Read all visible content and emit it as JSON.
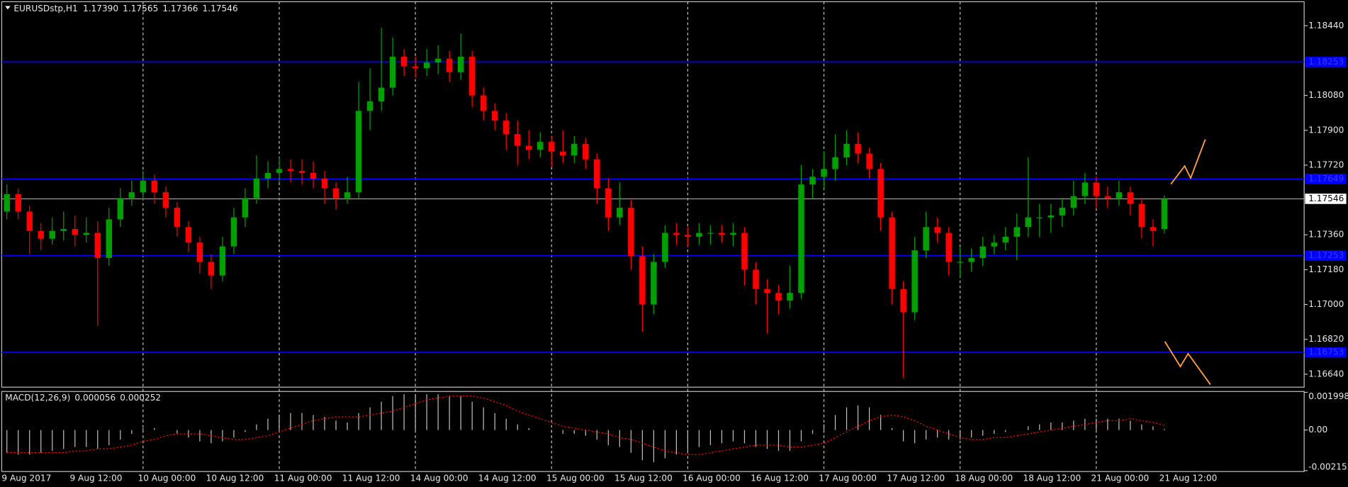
{
  "chart_data": [
    {
      "type": "candlestick",
      "title": "EURUSDstp,H1",
      "info_labels": [
        "1.17390",
        "1.17565",
        "1.17366",
        "1.17546"
      ],
      "categories": [
        "9 Aug 2017",
        null,
        null,
        null,
        null,
        null,
        "9 Aug 12:00",
        null,
        null,
        null,
        null,
        null,
        "10 Aug 00:00",
        null,
        null,
        null,
        null,
        null,
        "10 Aug 12:00",
        null,
        null,
        null,
        null,
        null,
        "11 Aug 00:00",
        null,
        null,
        null,
        null,
        null,
        "11 Aug 12:00",
        null,
        null,
        null,
        null,
        null,
        "14 Aug 00:00",
        null,
        null,
        null,
        null,
        null,
        "14 Aug 12:00",
        null,
        null,
        null,
        null,
        null,
        "15 Aug 00:00",
        null,
        null,
        null,
        null,
        null,
        "15 Aug 12:00",
        null,
        null,
        null,
        null,
        null,
        "16 Aug 00:00",
        null,
        null,
        null,
        null,
        null,
        "16 Aug 12:00",
        null,
        null,
        null,
        null,
        null,
        "17 Aug 00:00",
        null,
        null,
        null,
        null,
        null,
        "17 Aug 12:00",
        null,
        null,
        null,
        null,
        null,
        "18 Aug 00:00",
        null,
        null,
        null,
        null,
        null,
        "18 Aug 12:00",
        null,
        null,
        null,
        null,
        null,
        "21 Aug 00:00",
        null,
        null,
        null,
        null,
        null,
        "21 Aug 12:00"
      ],
      "ohlc": [
        [
          1.1748,
          1.1762,
          1.1744,
          1.1757
        ],
        [
          1.1757,
          1.176,
          1.1744,
          1.1748
        ],
        [
          1.1748,
          1.1751,
          1.1726,
          1.1738
        ],
        [
          1.1738,
          1.1742,
          1.1728,
          1.1734
        ],
        [
          1.1734,
          1.1745,
          1.1731,
          1.1738
        ],
        [
          1.1738,
          1.1748,
          1.1733,
          1.1739
        ],
        [
          1.1739,
          1.1746,
          1.173,
          1.1736
        ],
        [
          1.1736,
          1.1745,
          1.1732,
          1.1737
        ],
        [
          1.1737,
          1.1743,
          1.1689,
          1.1724
        ],
        [
          1.1724,
          1.175,
          1.172,
          1.1744
        ],
        [
          1.1744,
          1.176,
          1.174,
          1.1755
        ],
        [
          1.1755,
          1.1764,
          1.1751,
          1.1758
        ],
        [
          1.1758,
          1.1769,
          1.1754,
          1.1764
        ],
        [
          1.1764,
          1.1767,
          1.1752,
          1.1758
        ],
        [
          1.1758,
          1.1761,
          1.1745,
          1.175
        ],
        [
          1.175,
          1.1753,
          1.1735,
          1.174
        ],
        [
          1.174,
          1.1743,
          1.1727,
          1.1732
        ],
        [
          1.1732,
          1.1735,
          1.1716,
          1.1722
        ],
        [
          1.1722,
          1.1726,
          1.1708,
          1.1715
        ],
        [
          1.1715,
          1.1735,
          1.1712,
          1.173
        ],
        [
          1.173,
          1.175,
          1.1726,
          1.1745
        ],
        [
          1.1745,
          1.176,
          1.174,
          1.1755
        ],
        [
          1.1755,
          1.1777,
          1.1752,
          1.1765
        ],
        [
          1.1765,
          1.1774,
          1.176,
          1.1768
        ],
        [
          1.1768,
          1.1776,
          1.1763,
          1.177
        ],
        [
          1.177,
          1.1775,
          1.1763,
          1.1769
        ],
        [
          1.1769,
          1.1775,
          1.1762,
          1.1768
        ],
        [
          1.1768,
          1.1774,
          1.176,
          1.1765
        ],
        [
          1.1765,
          1.1769,
          1.1752,
          1.176
        ],
        [
          1.176,
          1.1763,
          1.1749,
          1.1755
        ],
        [
          1.1755,
          1.1766,
          1.1752,
          1.1758
        ],
        [
          1.1758,
          1.1815,
          1.1755,
          1.18
        ],
        [
          1.18,
          1.1822,
          1.179,
          1.1805
        ],
        [
          1.1805,
          1.1843,
          1.18,
          1.1812
        ],
        [
          1.1812,
          1.1838,
          1.1808,
          1.1828
        ],
        [
          1.1828,
          1.1832,
          1.1818,
          1.1823
        ],
        [
          1.1823,
          1.1828,
          1.1817,
          1.1822
        ],
        [
          1.1822,
          1.1832,
          1.1818,
          1.1825
        ],
        [
          1.1825,
          1.1834,
          1.1819,
          1.1827
        ],
        [
          1.1827,
          1.1831,
          1.1815,
          1.182
        ],
        [
          1.182,
          1.184,
          1.1816,
          1.1828
        ],
        [
          1.1828,
          1.1831,
          1.1802,
          1.1808
        ],
        [
          1.1808,
          1.1812,
          1.1795,
          1.18
        ],
        [
          1.18,
          1.1804,
          1.179,
          1.1795
        ],
        [
          1.1795,
          1.1799,
          1.178,
          1.1788
        ],
        [
          1.1788,
          1.1795,
          1.1772,
          1.1782
        ],
        [
          1.1782,
          1.179,
          1.1775,
          1.178
        ],
        [
          1.178,
          1.1789,
          1.1776,
          1.1784
        ],
        [
          1.1784,
          1.1787,
          1.1771,
          1.1779
        ],
        [
          1.1779,
          1.179,
          1.1773,
          1.1777
        ],
        [
          1.1777,
          1.1787,
          1.1773,
          1.1783
        ],
        [
          1.1783,
          1.1786,
          1.177,
          1.1775
        ],
        [
          1.1775,
          1.1778,
          1.1752,
          1.176
        ],
        [
          1.176,
          1.1765,
          1.1738,
          1.1745
        ],
        [
          1.1745,
          1.1763,
          1.1741,
          1.175
        ],
        [
          1.175,
          1.1754,
          1.1718,
          1.1725
        ],
        [
          1.1725,
          1.173,
          1.1686,
          1.17
        ],
        [
          1.17,
          1.1726,
          1.1695,
          1.1722
        ],
        [
          1.1722,
          1.1741,
          1.1719,
          1.1737
        ],
        [
          1.1737,
          1.1742,
          1.1731,
          1.1736
        ],
        [
          1.1736,
          1.174,
          1.173,
          1.1735
        ],
        [
          1.1735,
          1.1742,
          1.1731,
          1.1737
        ],
        [
          1.1737,
          1.1741,
          1.1731,
          1.1737
        ],
        [
          1.1737,
          1.1741,
          1.1732,
          1.1736
        ],
        [
          1.1736,
          1.1742,
          1.173,
          1.1737
        ],
        [
          1.1737,
          1.174,
          1.171,
          1.1718
        ],
        [
          1.1718,
          1.1722,
          1.17,
          1.1708
        ],
        [
          1.1708,
          1.1713,
          1.1685,
          1.1706
        ],
        [
          1.1706,
          1.171,
          1.1695,
          1.1702
        ],
        [
          1.1702,
          1.172,
          1.1698,
          1.1706
        ],
        [
          1.1706,
          1.1772,
          1.1703,
          1.1762
        ],
        [
          1.1762,
          1.177,
          1.1755,
          1.1766
        ],
        [
          1.1766,
          1.1779,
          1.176,
          1.177
        ],
        [
          1.177,
          1.1788,
          1.1764,
          1.1776
        ],
        [
          1.1776,
          1.179,
          1.1772,
          1.1783
        ],
        [
          1.1783,
          1.1789,
          1.1773,
          1.1778
        ],
        [
          1.1778,
          1.1781,
          1.1765,
          1.177
        ],
        [
          1.177,
          1.1773,
          1.1738,
          1.1745
        ],
        [
          1.1745,
          1.1748,
          1.17,
          1.1708
        ],
        [
          1.1708,
          1.1712,
          1.1662,
          1.1696
        ],
        [
          1.1696,
          1.1735,
          1.1692,
          1.1728
        ],
        [
          1.1728,
          1.1748,
          1.1724,
          1.174
        ],
        [
          1.174,
          1.1745,
          1.1732,
          1.1737
        ],
        [
          1.1737,
          1.174,
          1.1715,
          1.1722
        ],
        [
          1.1722,
          1.173,
          1.1714,
          1.1722
        ],
        [
          1.1722,
          1.1729,
          1.1717,
          1.1724
        ],
        [
          1.1724,
          1.1735,
          1.172,
          1.173
        ],
        [
          1.173,
          1.1736,
          1.1726,
          1.1732
        ],
        [
          1.1732,
          1.174,
          1.1728,
          1.1735
        ],
        [
          1.1735,
          1.1747,
          1.1723,
          1.174
        ],
        [
          1.174,
          1.1776,
          1.1735,
          1.1745
        ],
        [
          1.1745,
          1.1752,
          1.1735,
          1.1745
        ],
        [
          1.1745,
          1.1752,
          1.1737,
          1.1746
        ],
        [
          1.1746,
          1.1755,
          1.174,
          1.175
        ],
        [
          1.175,
          1.1764,
          1.1746,
          1.1756
        ],
        [
          1.1756,
          1.1768,
          1.1752,
          1.1763
        ],
        [
          1.1763,
          1.1766,
          1.175,
          1.1756
        ],
        [
          1.1756,
          1.1761,
          1.175,
          1.1755
        ],
        [
          1.1755,
          1.1764,
          1.1751,
          1.1758
        ],
        [
          1.1758,
          1.1761,
          1.1746,
          1.1752
        ],
        [
          1.1752,
          1.1755,
          1.1734,
          1.174
        ],
        [
          1.174,
          1.1744,
          1.173,
          1.1738
        ],
        [
          1.1739,
          1.17565,
          1.17366,
          1.17546
        ]
      ],
      "up_color": "#00a000",
      "down_color": "#ff0000",
      "ylim": [
        1.16573,
        1.18564
      ],
      "yticks": [
        {
          "value": 1.1844,
          "label": "1.18440"
        },
        {
          "value": 1.1808,
          "label": "1.18080"
        },
        {
          "value": 1.179,
          "label": "1.17900"
        },
        {
          "value": 1.1772,
          "label": "1.17720"
        },
        {
          "value": 1.1736,
          "label": "1.17360"
        },
        {
          "value": 1.1718,
          "label": "1.17180"
        },
        {
          "value": 1.17,
          "label": "1.17000"
        },
        {
          "value": 1.1682,
          "label": "1.16820"
        },
        {
          "value": 1.1664,
          "label": "1.16640"
        }
      ],
      "levels": [
        1.18253,
        1.17649,
        1.17253,
        1.16753
      ],
      "level_color": "#0000ff",
      "bid": {
        "value": 1.17546,
        "label": "1.17546"
      },
      "grid": true
    },
    {
      "type": "macd",
      "title": "MACD(12,26,9)",
      "info_labels": [
        "0.000056",
        "0.000252"
      ],
      "ylim": [
        -0.002152,
        0.001998
      ],
      "yticks": [
        0.001998,
        {
          "value": 0,
          "label": "0.00"
        },
        -0.002152
      ],
      "series": [
        {
          "color": "#c0c0c0",
          "values": [
            -0.0012,
            -0.0013,
            -0.0013,
            -0.0012,
            -0.0011,
            -0.001,
            -0.0009,
            -0.0009,
            -0.001,
            -0.0008,
            -0.0005,
            -0.0002,
            0.0001,
            0.0001,
            0,
            -0.0002,
            -0.0004,
            -0.0006,
            -0.0007,
            -0.0006,
            -0.0004,
            -0.0001,
            0.0003,
            0.0006,
            0.0008,
            0.0009,
            0.0009,
            0.0008,
            0.0007,
            0.0005,
            0.0004,
            0.0009,
            0.0012,
            0.0015,
            0.0018,
            0.0019,
            0.0019,
            0.0019,
            0.0019,
            0.0018,
            0.0018,
            0.0015,
            0.0012,
            0.0009,
            0.0006,
            0.0003,
            0.0001,
            0,
            -0.0001,
            -0.0002,
            -0.0002,
            -0.0003,
            -0.0005,
            -0.0008,
            -0.0009,
            -0.0012,
            -0.0016,
            -0.0017,
            -0.0015,
            -0.0013,
            -0.0011,
            -0.0009,
            -0.0008,
            -0.0007,
            -0.0006,
            -0.0007,
            -0.0009,
            -0.001,
            -0.0011,
            -0.0011,
            -0.0006,
            -0.0002,
            0.0003,
            0.0008,
            0.0012,
            0.0013,
            0.0012,
            0.0008,
            0.0001,
            -0.0006,
            -0.0007,
            -0.0005,
            -0.0004,
            -0.0005,
            -0.0005,
            -0.0004,
            -0.0003,
            -0.0002,
            -0.0001,
            0,
            0.0002,
            0.0003,
            0.0004,
            0.0004,
            0.0005,
            0.0006,
            0.0006,
            0.0006,
            0.0006,
            0.0005,
            0.0003,
            0.0002,
            5.6e-05
          ]
        },
        {
          "color": "#ff0000",
          "values": [
            -0.0012,
            -0.0012,
            -0.0012,
            -0.0012,
            -0.0012,
            -0.0012,
            -0.0011,
            -0.0011,
            -0.001,
            -0.001,
            -0.0009,
            -0.0008,
            -0.0006,
            -0.0005,
            -0.0003,
            -0.0002,
            -0.0002,
            -0.0002,
            -0.0003,
            -0.0004,
            -0.0005,
            -0.0005,
            -0.0004,
            -0.0003,
            -0.0001,
            0.0001,
            0.0003,
            0.0005,
            0.0006,
            0.0007,
            0.0007,
            0.0007,
            0.0008,
            0.0009,
            0.001,
            0.0012,
            0.0014,
            0.0016,
            0.0017,
            0.0018,
            0.0018,
            0.0018,
            0.0017,
            0.0015,
            0.0013,
            0.001,
            0.0008,
            0.0006,
            0.0004,
            0.0002,
            0.0001,
            0,
            -0.0001,
            -0.0002,
            -0.0004,
            -0.0005,
            -0.0007,
            -0.0009,
            -0.0011,
            -0.0012,
            -0.0013,
            -0.0013,
            -0.0012,
            -0.0011,
            -0.001,
            -0.0009,
            -0.0008,
            -0.0008,
            -0.0008,
            -0.0009,
            -0.0009,
            -0.0008,
            -0.0007,
            -0.0004,
            -0.0001,
            0.0002,
            0.0005,
            0.0007,
            0.0008,
            0.0007,
            0.0005,
            0.0002,
            0,
            -0.0002,
            -0.0004,
            -0.0005,
            -0.0005,
            -0.0004,
            -0.0004,
            -0.0003,
            -0.0002,
            -0.0001,
            0,
            0.0001,
            0.0002,
            0.0003,
            0.0004,
            0.0005,
            0.0005,
            0.0006,
            0.0005,
            0.0004,
            0.000252
          ]
        }
      ]
    }
  ]
}
